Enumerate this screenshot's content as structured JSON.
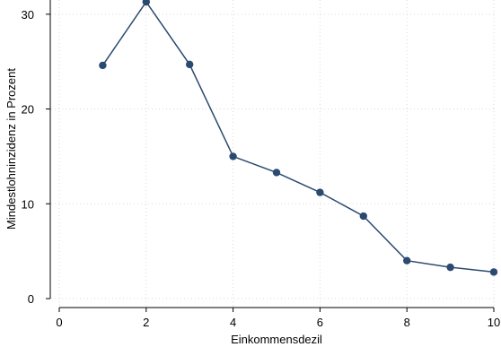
{
  "chart_data": {
    "type": "line",
    "title": "",
    "xlabel": "Einkommensdezil",
    "ylabel": "Mindestlohninzidenz in Prozent",
    "xlim": [
      0,
      10
    ],
    "ylim": [
      0,
      31.5
    ],
    "xticks": [
      0,
      2,
      4,
      6,
      8,
      10
    ],
    "yticks": [
      0,
      10,
      20,
      30
    ],
    "grid": true,
    "legend": "none",
    "series": [
      {
        "color": "#2b4a6f",
        "x": [
          1,
          2,
          3,
          4,
          5,
          6,
          7,
          8,
          9,
          10
        ],
        "y": [
          24.6,
          31.3,
          24.7,
          15.0,
          13.3,
          11.2,
          8.7,
          4.0,
          3.3,
          2.8
        ]
      }
    ]
  }
}
